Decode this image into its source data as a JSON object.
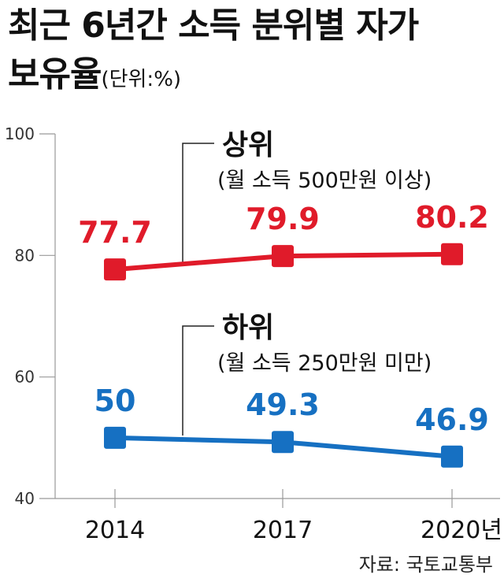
{
  "title": {
    "line1": "최근 6년간 소득 분위별 자가",
    "line2": "보유율",
    "unit": "(단위:%)"
  },
  "source": "자료: 국토교통부",
  "chart_data": {
    "type": "line",
    "categories": [
      "2014",
      "2017",
      "2020년"
    ],
    "ylim": [
      40,
      100
    ],
    "yticks": [
      "100",
      "80",
      "60",
      "40"
    ],
    "grid": false,
    "series": [
      {
        "name": "상위",
        "subtitle": "(월 소득 500만원 이상)",
        "values": [
          77.7,
          79.9,
          80.2
        ],
        "labels": [
          "77.7",
          "79.9",
          "80.2"
        ],
        "color": "#e01b2a"
      },
      {
        "name": "하위",
        "subtitle": "(월 소득 250만원 미만)",
        "values": [
          50,
          49.3,
          46.9
        ],
        "labels": [
          "50",
          "49.3",
          "46.9"
        ],
        "color": "#1670c2"
      }
    ]
  }
}
